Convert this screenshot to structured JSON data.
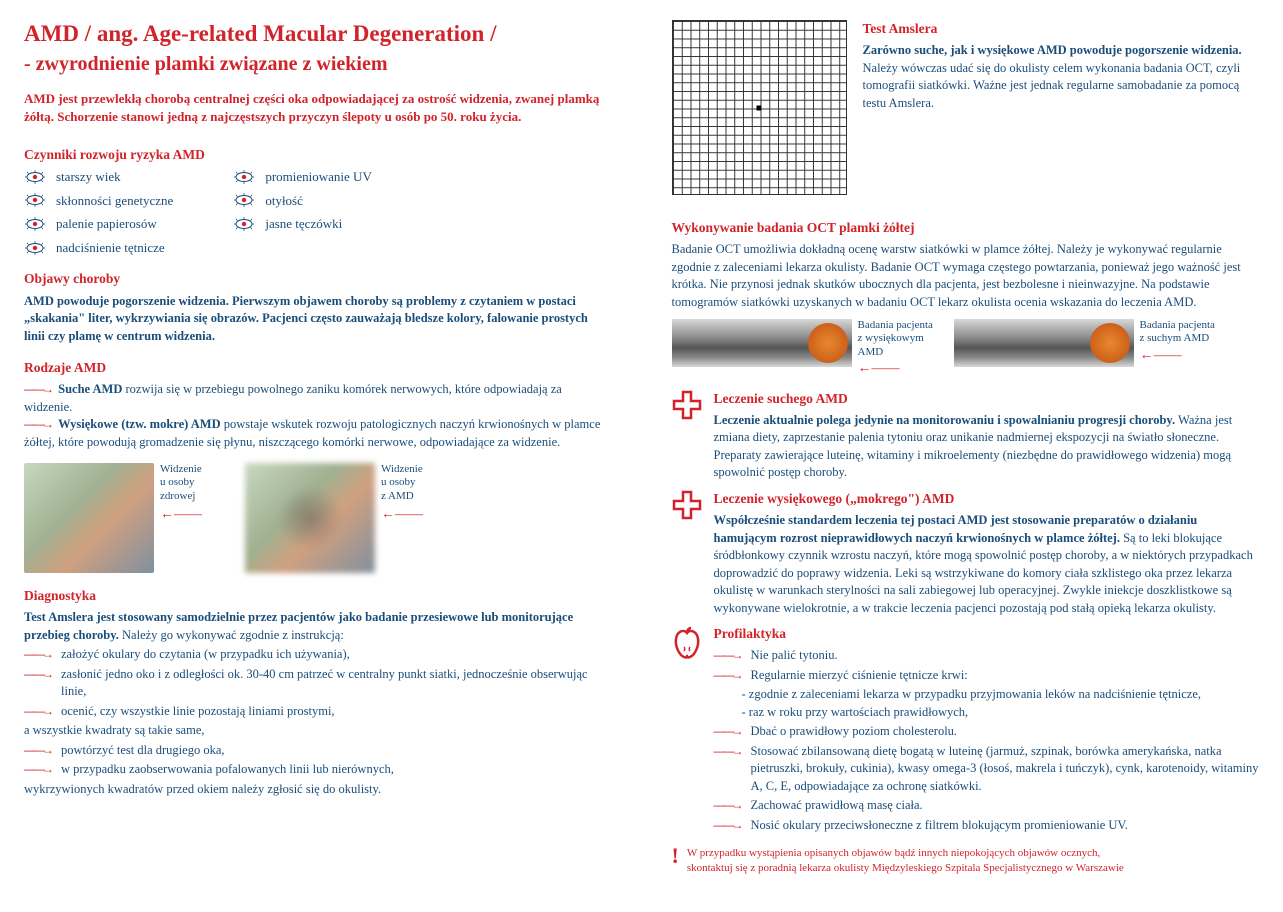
{
  "title_line1": "AMD / ang. Age-related Macular Degeneration /",
  "title_line2": "- zwyrodnienie plamki związane z wiekiem",
  "intro": "AMD jest przewlekłą chorobą centralnej części oka odpowiadającej za ostrość widzenia, zwanej plamką żółtą. Schorzenie stanowi jedną z najczęstszych przyczyn ślepoty u osób po 50. roku życia.",
  "risk": {
    "heading": "Czynniki rozwoju ryzyka AMD",
    "col1": [
      "starszy wiek",
      "skłonności genetyczne",
      "palenie papierosów",
      "nadciśnienie tętnicze"
    ],
    "col2": [
      "promieniowanie UV",
      "otyłość",
      "jasne tęczówki"
    ]
  },
  "symptoms": {
    "heading": "Objawy choroby",
    "text": "AMD powoduje pogorszenie widzenia. Pierwszym objawem choroby są problemy z czytaniem w postaci „skakania\" liter, wykrzywiania się obrazów. Pacjenci często zauważają bledsze kolory, falowanie prostych linii czy plamę w centrum widzenia."
  },
  "types": {
    "heading": "Rodzaje AMD",
    "t1_bold": "Suche AMD",
    "t1_text": " rozwija się w przebiegu powolnego zaniku komórek nerwowych, które odpowiadają za widzenie.",
    "t2_bold": "Wysiękowe (tzw. mokre) AMD",
    "t2_text": " powstaje wskutek rozwoju patologicznych naczyń krwionośnych w plamce żółtej, które powodują gromadzenie się płynu, niszczącego komórki nerwowe, odpowiadające za widzenie."
  },
  "vision_labels": {
    "healthy": "Widzenie\nu osoby\nzdrowej",
    "amd": "Widzenie\nu osoby\nz AMD"
  },
  "diag": {
    "heading": "Diagnostyka",
    "intro_bold": "Test Amslera jest stosowany samodzielnie przez pacjentów jako badanie przesiewowe lub monitorujące przebieg choroby.",
    "intro_rest": " Należy go wykonywać zgodnie z instrukcją:",
    "steps": [
      "założyć okulary do czytania (w przypadku ich używania),",
      "zasłonić jedno oko i z odległości ok. 30-40 cm patrzeć w centralny punkt siatki, jednocześnie obserwując linie,",
      "ocenić, czy wszystkie linie pozostają liniami prostymi,"
    ],
    "mid_text": "a wszystkie kwadraty są takie same,",
    "steps2": [
      "powtórzyć test dla drugiego oka,",
      "w przypadku zaobserwowania pofalowanych linii lub nierównych,"
    ],
    "end_text": "wykrzywionych kwadratów przed okiem należy zgłosić się do okulisty."
  },
  "amsler": {
    "heading": "Test Amslera",
    "bold": "Zarówno suche, jak i wysiękowe AMD powoduje pogorszenie widzenia.",
    "text": " Należy wówczas udać się do okulisty celem wykonania badania OCT, czyli tomografii siatkówki. Ważne jest jednak regularne samobadanie za pomocą testu Amslera."
  },
  "oct": {
    "heading": "Wykonywanie badania OCT plamki żółtej",
    "text": "Badanie OCT umożliwia dokładną ocenę warstw siatkówki w plamce żółtej. Należy je wykonywać regularnie zgodnie z zaleceniami lekarza okulisty. Badanie OCT wymaga częstego powtarzania, ponieważ jego ważność jest krótka. Nie przynosi jednak skutków ubocznych dla pacjenta, jest bezbolesne i nieinwazyjne. Na podstawie tomogramów siatkówki uzyskanych w badaniu OCT lekarz okulista ocenia wskazania do leczenia AMD.",
    "cap1": "Badania pacjenta z wysiękowym AMD",
    "cap2": "Badania pacjenta z suchym AMD"
  },
  "dry": {
    "heading": "Leczenie suchego AMD",
    "bold": "Leczenie aktualnie polega jedynie na monitorowaniu i spowalnianiu progresji choroby.",
    "text": " Ważna jest zmiana diety, zaprzestanie palenia tytoniu oraz unikanie nadmiernej ekspozycji na światło słoneczne. Preparaty zawierające luteinę, witaminy i mikroelementy (niezbędne do prawidłowego widzenia) mogą spowolnić postęp choroby."
  },
  "wet": {
    "heading": "Leczenie wysiękowego („mokrego\") AMD",
    "bold": "Współcześnie standardem leczenia tej postaci AMD jest stosowanie preparatów o działaniu hamującym rozrost nieprawidłowych naczyń krwionośnych w plamce żółtej.",
    "text": " Są to leki blokujące śródbłonkowy czynnik wzrostu naczyń, które mogą spowolnić postęp choroby, a w niektórych przypadkach doprowadzić do poprawy widzenia. Leki są wstrzykiwane do komory ciała szklistego oka przez lekarza okulistę w warunkach sterylności na sali zabiegowej lub operacyjnej. Zwykle iniekcje doszklistkowe są wykonywane wielokrotnie, a w trakcie leczenia pacjenci pozostają pod stałą opieką lekarza okulisty."
  },
  "prof": {
    "heading": "Profilaktyka",
    "items": [
      {
        "text": "Nie palić tytoniu."
      },
      {
        "text": "Regularnie mierzyć ciśnienie tętnicze krwi:",
        "sub": [
          "- zgodnie z zaleceniami lekarza w przypadku przyjmowania leków na nadciśnienie tętnicze,",
          "- raz w roku przy wartościach prawidłowych,"
        ]
      },
      {
        "text": "Dbać o prawidłowy poziom cholesterolu."
      },
      {
        "text": "Stosować zbilansowaną dietę bogatą w luteinę (jarmuż, szpinak, borówka amerykańska, natka pietruszki, brokuły, cukinia), kwasy omega-3 (łosoś, makrela i tuńczyk), cynk, karotenoidy, witaminy A, C, E, odpowiadające za ochronę siatkówki."
      },
      {
        "text": "Zachować prawidłową masę ciała."
      },
      {
        "text": "Nosić okulary przeciwsłoneczne z filtrem blokującym promieniowanie UV."
      }
    ]
  },
  "footer": {
    "line1": "W przypadku wystąpienia opisanych objawów bądź innych niepokojących objawów ocznych,",
    "line2": "skontaktuj się z poradnią lekarza okulisty Międzyleskiego Szpitala Specjalistycznego w Warszawie"
  },
  "colors": {
    "red": "#d2232a",
    "blue": "#1a4d7a"
  }
}
